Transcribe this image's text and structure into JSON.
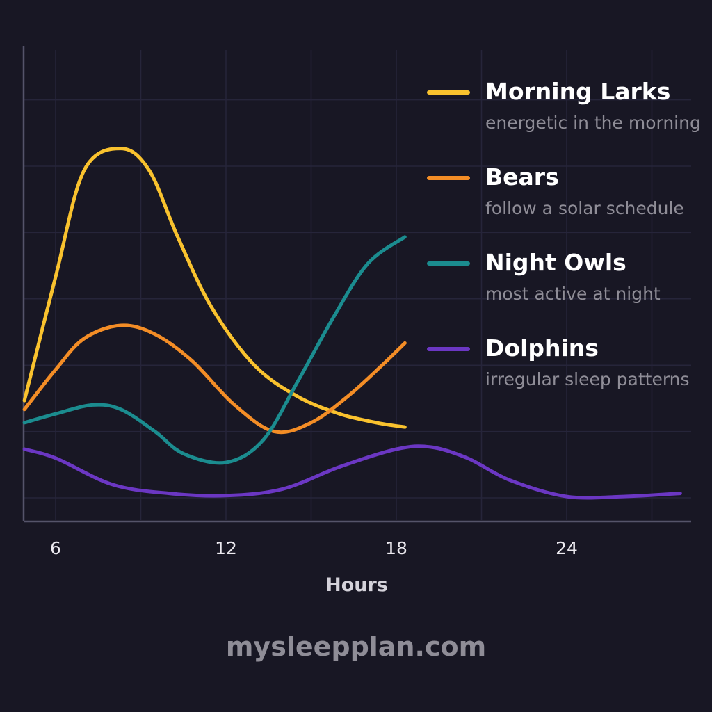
{
  "chart_data": {
    "type": "line",
    "title": "",
    "xlabel": "Hours",
    "ylabel": "",
    "xlim": [
      4.9,
      28.3
    ],
    "ylim": [
      0,
      10
    ],
    "xticks": [
      "6",
      "12",
      "18",
      "24"
    ],
    "xtick_values": [
      6,
      12,
      18,
      24
    ],
    "grid": true,
    "legend_position": "right",
    "series": [
      {
        "name": "Morning Larks",
        "description": "energetic in the morning",
        "color": "#f9c22e",
        "x": [
          4.9,
          6.0,
          7.0,
          8.3,
          9.3,
          10.3,
          11.5,
          13.0,
          14.5,
          16.0,
          17.3,
          18.3
        ],
        "y": [
          2.2,
          5.0,
          7.4,
          7.9,
          7.4,
          5.9,
          4.3,
          3.0,
          2.3,
          1.9,
          1.7,
          1.6
        ]
      },
      {
        "name": "Bears",
        "description": "follow a solar schedule",
        "color": "#f38d26",
        "x": [
          4.9,
          6.0,
          7.0,
          8.3,
          9.5,
          10.8,
          12.3,
          13.7,
          15.0,
          16.3,
          17.5,
          18.3
        ],
        "y": [
          2.0,
          2.9,
          3.6,
          3.9,
          3.7,
          3.1,
          2.1,
          1.5,
          1.7,
          2.3,
          3.0,
          3.5
        ]
      },
      {
        "name": "Night Owls",
        "description": "most active at night",
        "color": "#1b8c8f",
        "x": [
          4.9,
          6.0,
          7.3,
          8.3,
          9.5,
          10.5,
          12.0,
          13.3,
          14.5,
          15.8,
          17.0,
          18.3
        ],
        "y": [
          1.7,
          1.9,
          2.1,
          2.0,
          1.5,
          1.0,
          0.8,
          1.3,
          2.6,
          4.1,
          5.3,
          5.9
        ]
      },
      {
        "name": "Dolphins",
        "description": "irregular sleep patterns",
        "color": "#6b37c3",
        "x": [
          4.9,
          6.0,
          8.0,
          10.0,
          12.0,
          14.0,
          16.0,
          18.0,
          19.2,
          20.5,
          22.0,
          24.0,
          26.0,
          28.0
        ],
        "y": [
          1.1,
          0.9,
          0.3,
          0.1,
          0.05,
          0.2,
          0.7,
          1.1,
          1.15,
          0.9,
          0.4,
          0.03,
          0.03,
          0.1
        ]
      }
    ]
  },
  "footer": {
    "site": "mysleepplan.com"
  }
}
